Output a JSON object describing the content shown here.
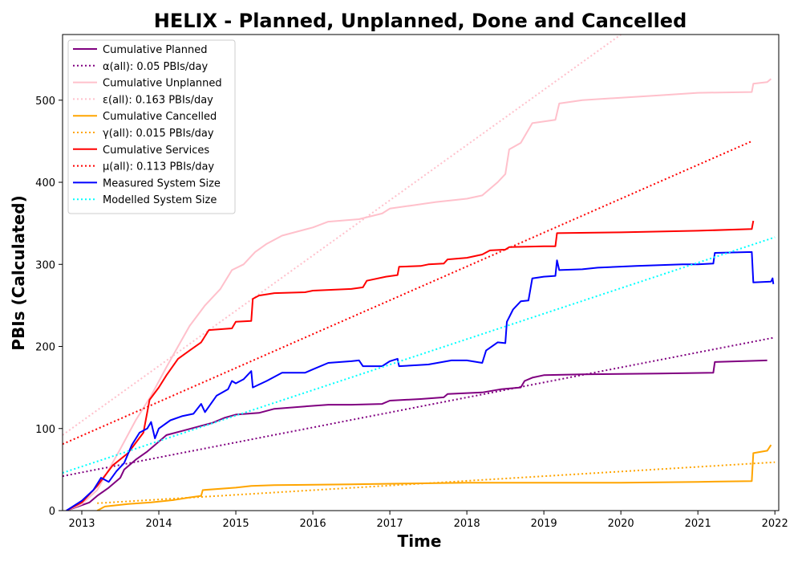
{
  "chart_data": {
    "type": "line",
    "title": "HELIX - Planned, Unplanned, Done  and Cancelled",
    "xlabel": "Time",
    "ylabel": "PBIs (Calculated)",
    "xlim": [
      2012.75,
      2022.05
    ],
    "ylim": [
      0,
      580
    ],
    "x_ticks": [
      2013,
      2014,
      2015,
      2016,
      2017,
      2018,
      2019,
      2020,
      2021,
      2022
    ],
    "y_ticks": [
      0,
      100,
      200,
      300,
      400,
      500
    ],
    "grid": false,
    "legend_position": "upper-left",
    "series": [
      {
        "name": "Cumulative Planned",
        "color": "#800080",
        "style": "solid",
        "points": [
          [
            2012.8,
            0
          ],
          [
            2012.95,
            5
          ],
          [
            2013.1,
            10
          ],
          [
            2013.2,
            18
          ],
          [
            2013.35,
            28
          ],
          [
            2013.5,
            40
          ],
          [
            2013.55,
            50
          ],
          [
            2013.7,
            62
          ],
          [
            2013.85,
            72
          ],
          [
            2013.95,
            80
          ],
          [
            2014.1,
            92
          ],
          [
            2014.3,
            97
          ],
          [
            2014.5,
            102
          ],
          [
            2014.7,
            107
          ],
          [
            2014.85,
            113
          ],
          [
            2015.0,
            117
          ],
          [
            2015.3,
            119
          ],
          [
            2015.5,
            124
          ],
          [
            2015.9,
            127
          ],
          [
            2016.2,
            129
          ],
          [
            2016.5,
            129
          ],
          [
            2016.9,
            130
          ],
          [
            2017.0,
            134
          ],
          [
            2017.4,
            136
          ],
          [
            2017.7,
            138
          ],
          [
            2017.75,
            142
          ],
          [
            2018.2,
            144
          ],
          [
            2018.45,
            148
          ],
          [
            2018.7,
            150
          ],
          [
            2018.75,
            158
          ],
          [
            2018.85,
            162
          ],
          [
            2019.0,
            165
          ],
          [
            2019.5,
            166
          ],
          [
            2020.5,
            167
          ],
          [
            2021.2,
            168
          ],
          [
            2021.22,
            181
          ],
          [
            2021.9,
            183
          ]
        ]
      },
      {
        "name": "α(all): 0.05 PBIs/day",
        "color": "#800080",
        "style": "dotted",
        "points": [
          [
            2012.75,
            42
          ],
          [
            2022.0,
            211
          ]
        ]
      },
      {
        "name": "Cumulative Unplanned",
        "color": "#ffc0cb",
        "style": "solid",
        "points": [
          [
            2012.8,
            0
          ],
          [
            2013.0,
            8
          ],
          [
            2013.2,
            25
          ],
          [
            2013.35,
            50
          ],
          [
            2013.5,
            75
          ],
          [
            2013.7,
            110
          ],
          [
            2013.9,
            140
          ],
          [
            2014.1,
            175
          ],
          [
            2014.25,
            200
          ],
          [
            2014.4,
            225
          ],
          [
            2014.6,
            250
          ],
          [
            2014.8,
            270
          ],
          [
            2014.95,
            293
          ],
          [
            2015.1,
            300
          ],
          [
            2015.25,
            315
          ],
          [
            2015.4,
            325
          ],
          [
            2015.6,
            335
          ],
          [
            2015.8,
            340
          ],
          [
            2016.0,
            345
          ],
          [
            2016.2,
            352
          ],
          [
            2016.6,
            355
          ],
          [
            2016.9,
            362
          ],
          [
            2017.0,
            368
          ],
          [
            2017.3,
            372
          ],
          [
            2017.6,
            376
          ],
          [
            2018.0,
            380
          ],
          [
            2018.2,
            384
          ],
          [
            2018.4,
            400
          ],
          [
            2018.5,
            410
          ],
          [
            2018.55,
            440
          ],
          [
            2018.7,
            448
          ],
          [
            2018.85,
            472
          ],
          [
            2019.15,
            476
          ],
          [
            2019.2,
            496
          ],
          [
            2019.5,
            500
          ],
          [
            2020.0,
            503
          ],
          [
            2020.5,
            506
          ],
          [
            2021.0,
            509
          ],
          [
            2021.7,
            510
          ],
          [
            2021.72,
            520
          ],
          [
            2021.9,
            522
          ],
          [
            2021.95,
            526
          ]
        ]
      },
      {
        "name": "ε(all): 0.163 PBIs/day",
        "color": "#ffc0cb",
        "style": "dotted",
        "points": [
          [
            2012.75,
            92
          ],
          [
            2020.0,
            580
          ]
        ]
      },
      {
        "name": "Cumulative Cancelled",
        "color": "#ffa500",
        "style": "solid",
        "points": [
          [
            2013.2,
            0
          ],
          [
            2013.3,
            5
          ],
          [
            2013.6,
            8
          ],
          [
            2013.9,
            10
          ],
          [
            2014.2,
            13
          ],
          [
            2014.4,
            16
          ],
          [
            2014.55,
            18
          ],
          [
            2014.57,
            25
          ],
          [
            2015.0,
            28
          ],
          [
            2015.2,
            30
          ],
          [
            2015.5,
            31
          ],
          [
            2016.5,
            32
          ],
          [
            2017.2,
            33
          ],
          [
            2018.0,
            34
          ],
          [
            2019.0,
            34
          ],
          [
            2020.0,
            34
          ],
          [
            2021.0,
            35
          ],
          [
            2021.7,
            36
          ],
          [
            2021.72,
            70
          ],
          [
            2021.9,
            73
          ],
          [
            2021.95,
            80
          ]
        ]
      },
      {
        "name": "γ(all): 0.015 PBIs/day",
        "color": "#ffa500",
        "style": "dotted",
        "points": [
          [
            2013.2,
            9
          ],
          [
            2022.0,
            59
          ]
        ]
      },
      {
        "name": "Cumulative Services",
        "color": "#ff0000",
        "style": "solid",
        "points": [
          [
            2012.8,
            0
          ],
          [
            2013.0,
            10
          ],
          [
            2013.2,
            30
          ],
          [
            2013.4,
            55
          ],
          [
            2013.6,
            70
          ],
          [
            2013.8,
            95
          ],
          [
            2013.88,
            135
          ],
          [
            2014.0,
            150
          ],
          [
            2014.1,
            165
          ],
          [
            2014.25,
            185
          ],
          [
            2014.4,
            195
          ],
          [
            2014.55,
            205
          ],
          [
            2014.65,
            220
          ],
          [
            2014.95,
            222
          ],
          [
            2015.0,
            230
          ],
          [
            2015.2,
            231
          ],
          [
            2015.22,
            258
          ],
          [
            2015.3,
            262
          ],
          [
            2015.5,
            265
          ],
          [
            2015.9,
            266
          ],
          [
            2016.0,
            268
          ],
          [
            2016.5,
            270
          ],
          [
            2016.65,
            272
          ],
          [
            2016.7,
            280
          ],
          [
            2016.95,
            285
          ],
          [
            2017.1,
            287
          ],
          [
            2017.12,
            297
          ],
          [
            2017.4,
            298
          ],
          [
            2017.5,
            300
          ],
          [
            2017.7,
            301
          ],
          [
            2017.75,
            306
          ],
          [
            2018.0,
            308
          ],
          [
            2018.2,
            312
          ],
          [
            2018.3,
            317
          ],
          [
            2018.5,
            318
          ],
          [
            2018.55,
            321
          ],
          [
            2019.0,
            322
          ],
          [
            2019.15,
            322
          ],
          [
            2019.17,
            338
          ],
          [
            2020.0,
            339
          ],
          [
            2021.0,
            341
          ],
          [
            2021.7,
            343
          ],
          [
            2021.72,
            353
          ]
        ]
      },
      {
        "name": "μ(all): 0.113 PBIs/day",
        "color": "#ff0000",
        "style": "dotted",
        "points": [
          [
            2012.75,
            81
          ],
          [
            2021.7,
            450
          ]
        ]
      },
      {
        "name": "Measured System Size",
        "color": "#0000ff",
        "style": "solid",
        "points": [
          [
            2012.8,
            0
          ],
          [
            2013.0,
            12
          ],
          [
            2013.15,
            25
          ],
          [
            2013.25,
            40
          ],
          [
            2013.35,
            35
          ],
          [
            2013.45,
            48
          ],
          [
            2013.55,
            58
          ],
          [
            2013.65,
            80
          ],
          [
            2013.75,
            95
          ],
          [
            2013.85,
            100
          ],
          [
            2013.9,
            108
          ],
          [
            2013.95,
            88
          ],
          [
            2014.0,
            100
          ],
          [
            2014.15,
            110
          ],
          [
            2014.3,
            115
          ],
          [
            2014.45,
            118
          ],
          [
            2014.55,
            130
          ],
          [
            2014.6,
            120
          ],
          [
            2014.75,
            140
          ],
          [
            2014.9,
            148
          ],
          [
            2014.95,
            158
          ],
          [
            2015.0,
            155
          ],
          [
            2015.1,
            160
          ],
          [
            2015.2,
            170
          ],
          [
            2015.22,
            150
          ],
          [
            2015.4,
            158
          ],
          [
            2015.6,
            168
          ],
          [
            2015.9,
            168
          ],
          [
            2016.0,
            172
          ],
          [
            2016.2,
            180
          ],
          [
            2016.5,
            182
          ],
          [
            2016.6,
            183
          ],
          [
            2016.65,
            176
          ],
          [
            2016.9,
            176
          ],
          [
            2017.0,
            182
          ],
          [
            2017.1,
            185
          ],
          [
            2017.12,
            176
          ],
          [
            2017.5,
            178
          ],
          [
            2017.8,
            183
          ],
          [
            2018.0,
            183
          ],
          [
            2018.2,
            180
          ],
          [
            2018.25,
            195
          ],
          [
            2018.4,
            205
          ],
          [
            2018.5,
            204
          ],
          [
            2018.52,
            230
          ],
          [
            2018.6,
            245
          ],
          [
            2018.7,
            255
          ],
          [
            2018.8,
            256
          ],
          [
            2018.85,
            283
          ],
          [
            2019.0,
            285
          ],
          [
            2019.15,
            286
          ],
          [
            2019.17,
            305
          ],
          [
            2019.2,
            293
          ],
          [
            2019.5,
            294
          ],
          [
            2019.7,
            296
          ],
          [
            2020.2,
            298
          ],
          [
            2020.5,
            299
          ],
          [
            2020.8,
            300
          ],
          [
            2021.0,
            300
          ],
          [
            2021.2,
            301
          ],
          [
            2021.22,
            314
          ],
          [
            2021.7,
            315
          ],
          [
            2021.72,
            278
          ],
          [
            2021.95,
            279
          ],
          [
            2021.97,
            283
          ],
          [
            2021.98,
            276
          ]
        ]
      },
      {
        "name": "Modelled System Size",
        "color": "#00ffff",
        "style": "dotted",
        "points": [
          [
            2012.75,
            46
          ],
          [
            2022.0,
            333
          ]
        ]
      }
    ]
  }
}
